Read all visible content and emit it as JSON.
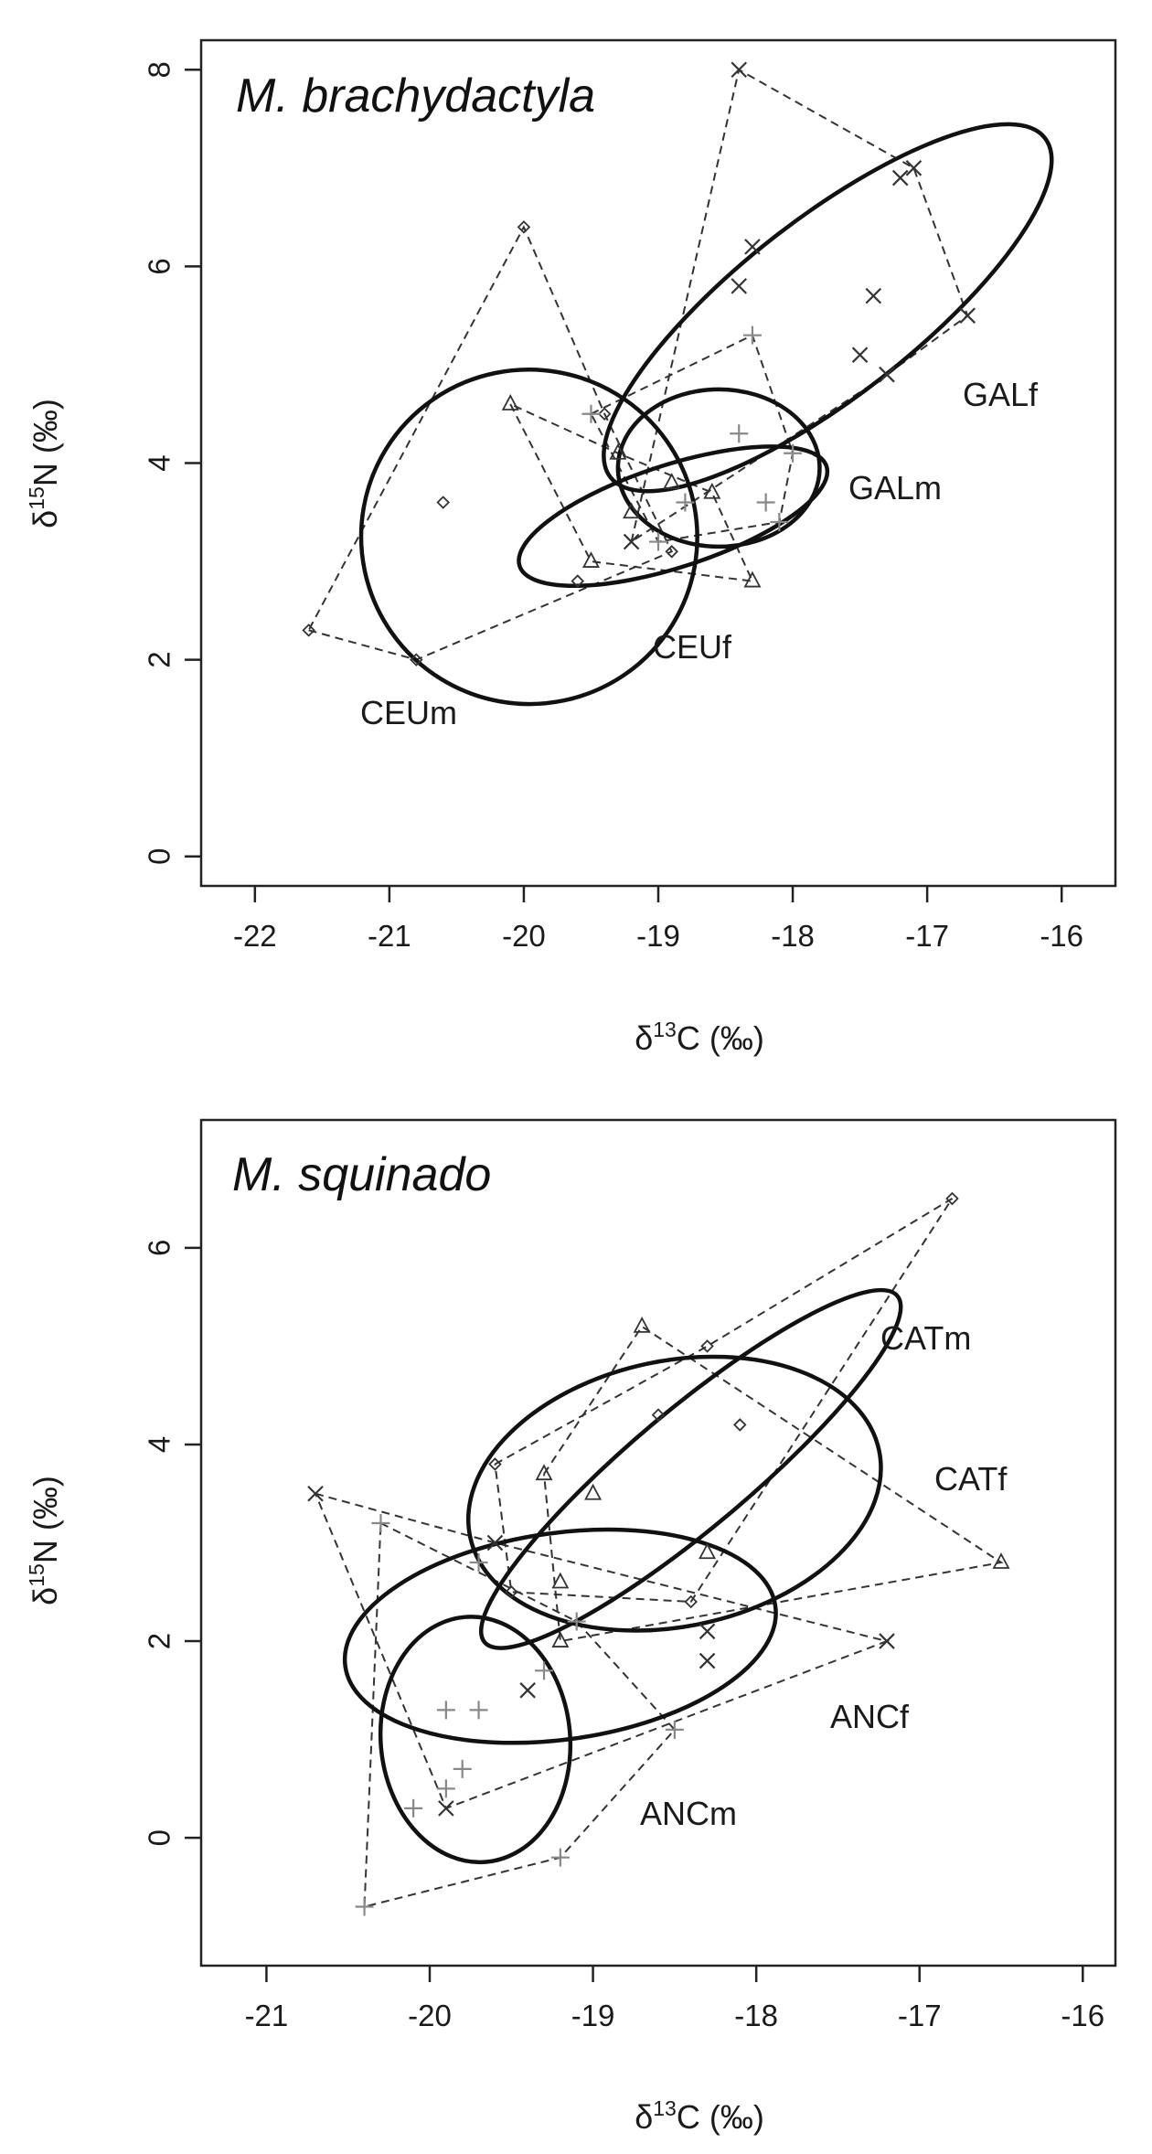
{
  "chart_data": [
    {
      "type": "scatter",
      "title": "M. brachydactyla",
      "xlabel": {
        "prefix": "δ",
        "sup": "13",
        "rest": "C (‰)"
      },
      "ylabel": {
        "prefix": "δ",
        "sup": "15",
        "rest": "N (‰)"
      },
      "xlim": [
        -22.4,
        -15.6
      ],
      "ylim": [
        -0.3,
        8.3
      ],
      "xticks": [
        -22,
        -21,
        -20,
        -19,
        -18,
        -17,
        -16
      ],
      "yticks": [
        0,
        2,
        4,
        6,
        8
      ],
      "grid": false,
      "groups": [
        {
          "label": "CEUm",
          "marker": "diamond",
          "points": [
            [
              -21.6,
              2.3
            ],
            [
              -20.6,
              3.6
            ],
            [
              -20.0,
              6.4
            ],
            [
              -19.6,
              2.8
            ],
            [
              -18.9,
              3.1
            ],
            [
              -20.8,
              2.0
            ],
            [
              -19.4,
              4.5
            ]
          ],
          "hull": [
            [
              -21.6,
              2.3
            ],
            [
              -20.8,
              2.0
            ],
            [
              -18.9,
              3.1
            ],
            [
              -19.4,
              4.5
            ],
            [
              -20.0,
              6.4
            ],
            [
              -21.6,
              2.3
            ]
          ],
          "ellipse": {
            "cx": -19.96,
            "cy": 3.25,
            "rx": 1.25,
            "ry": 1.7,
            "angle": 10
          }
        },
        {
          "label": "CEUf",
          "marker": "triangle",
          "points": [
            [
              -20.1,
              4.6
            ],
            [
              -19.5,
              3.0
            ],
            [
              -19.3,
              4.1
            ],
            [
              -18.9,
              3.8
            ],
            [
              -18.6,
              3.7
            ],
            [
              -18.3,
              2.8
            ],
            [
              -19.2,
              3.5
            ]
          ],
          "hull": [
            [
              -20.1,
              4.6
            ],
            [
              -19.5,
              3.0
            ],
            [
              -18.3,
              2.8
            ],
            [
              -18.6,
              3.7
            ],
            [
              -19.3,
              4.1
            ],
            [
              -20.1,
              4.6
            ]
          ],
          "ellipse": {
            "cx": -18.89,
            "cy": 3.46,
            "rx": 1.2,
            "ry": 0.52,
            "angle": -18
          }
        },
        {
          "label": "GALm",
          "marker": "plus",
          "points": [
            [
              -19.5,
              4.5
            ],
            [
              -18.8,
              3.6
            ],
            [
              -18.4,
              4.3
            ],
            [
              -18.3,
              5.3
            ],
            [
              -18.2,
              3.6
            ],
            [
              -18.1,
              3.4
            ],
            [
              -18.0,
              4.1
            ],
            [
              -19.0,
              3.2
            ]
          ],
          "hull": [
            [
              -19.5,
              4.5
            ],
            [
              -18.3,
              5.3
            ],
            [
              -18.0,
              4.1
            ],
            [
              -18.1,
              3.4
            ],
            [
              -19.0,
              3.2
            ],
            [
              -19.5,
              4.5
            ]
          ],
          "ellipse": {
            "cx": -18.55,
            "cy": 3.95,
            "rx": 0.75,
            "ry": 0.8,
            "angle": 0
          }
        },
        {
          "label": "GALf",
          "marker": "x",
          "points": [
            [
              -18.4,
              8.0
            ],
            [
              -18.3,
              6.2
            ],
            [
              -18.4,
              5.8
            ],
            [
              -17.4,
              5.7
            ],
            [
              -17.5,
              5.1
            ],
            [
              -17.3,
              4.9
            ],
            [
              -17.2,
              6.9
            ],
            [
              -17.1,
              7.0
            ],
            [
              -16.7,
              5.5
            ],
            [
              -19.2,
              3.2
            ]
          ],
          "hull": [
            [
              -19.2,
              3.2
            ],
            [
              -18.4,
              8.0
            ],
            [
              -17.1,
              7.0
            ],
            [
              -16.7,
              5.5
            ],
            [
              -17.3,
              4.9
            ],
            [
              -19.2,
              3.2
            ]
          ],
          "ellipse": {
            "cx": -17.74,
            "cy": 5.58,
            "rx": 2.05,
            "ry": 0.9,
            "angle": -38
          }
        }
      ]
    },
    {
      "type": "scatter",
      "title": "M. squinado",
      "xlabel": {
        "prefix": "δ",
        "sup": "13",
        "rest": "C (‰)"
      },
      "ylabel": {
        "prefix": "δ",
        "sup": "15",
        "rest": "N (‰)"
      },
      "xlim": [
        -21.4,
        -15.8
      ],
      "ylim": [
        -1.3,
        7.3
      ],
      "xticks": [
        -21,
        -20,
        -19,
        -18,
        -17,
        -16
      ],
      "yticks": [
        0,
        2,
        4,
        6
      ],
      "grid": false,
      "groups": [
        {
          "label": "CATm",
          "marker": "diamond",
          "points": [
            [
              -16.8,
              6.5
            ],
            [
              -18.3,
              5.0
            ],
            [
              -18.6,
              4.3
            ],
            [
              -18.1,
              4.2
            ],
            [
              -19.6,
              3.8
            ],
            [
              -18.4,
              2.4
            ],
            [
              -19.5,
              2.5
            ]
          ],
          "hull": [
            [
              -19.6,
              3.8
            ],
            [
              -18.3,
              5.0
            ],
            [
              -16.8,
              6.5
            ],
            [
              -18.4,
              2.4
            ],
            [
              -19.5,
              2.5
            ],
            [
              -19.6,
              3.8
            ]
          ],
          "ellipse": {
            "cx": -18.4,
            "cy": 3.75,
            "rx": 1.65,
            "ry": 0.6,
            "angle": -40
          }
        },
        {
          "label": "CATf",
          "marker": "triangle",
          "points": [
            [
              -18.7,
              5.2
            ],
            [
              -19.3,
              3.7
            ],
            [
              -19.0,
              3.5
            ],
            [
              -16.5,
              2.8
            ],
            [
              -18.3,
              2.9
            ],
            [
              -19.2,
              2.6
            ],
            [
              -19.2,
              2.0
            ]
          ],
          "hull": [
            [
              -19.3,
              3.7
            ],
            [
              -18.7,
              5.2
            ],
            [
              -16.5,
              2.8
            ],
            [
              -19.2,
              2.0
            ],
            [
              -19.3,
              3.7
            ]
          ],
          "ellipse": {
            "cx": -18.5,
            "cy": 3.5,
            "rx": 1.28,
            "ry": 1.35,
            "angle": -12
          }
        },
        {
          "label": "ANCf",
          "marker": "x",
          "points": [
            [
              -20.7,
              3.5
            ],
            [
              -19.6,
              3.0
            ],
            [
              -19.4,
              1.5
            ],
            [
              -19.9,
              0.3
            ],
            [
              -18.3,
              2.1
            ],
            [
              -18.3,
              1.8
            ],
            [
              -17.2,
              2.0
            ]
          ],
          "hull": [
            [
              -20.7,
              3.5
            ],
            [
              -19.6,
              3.0
            ],
            [
              -17.2,
              2.0
            ],
            [
              -19.9,
              0.3
            ],
            [
              -20.7,
              3.5
            ]
          ],
          "ellipse": {
            "cx": -19.2,
            "cy": 2.05,
            "rx": 1.33,
            "ry": 1.05,
            "angle": -8
          }
        },
        {
          "label": "ANCm",
          "marker": "plus",
          "points": [
            [
              -20.3,
              3.2
            ],
            [
              -19.7,
              2.8
            ],
            [
              -19.3,
              1.7
            ],
            [
              -19.9,
              1.3
            ],
            [
              -19.7,
              1.3
            ],
            [
              -19.8,
              0.7
            ],
            [
              -19.9,
              0.5
            ],
            [
              -20.1,
              0.3
            ],
            [
              -20.4,
              -0.7
            ],
            [
              -19.2,
              -0.2
            ],
            [
              -19.1,
              2.2
            ],
            [
              -18.5,
              1.1
            ]
          ],
          "hull": [
            [
              -20.3,
              3.2
            ],
            [
              -19.1,
              2.2
            ],
            [
              -18.5,
              1.1
            ],
            [
              -19.2,
              -0.2
            ],
            [
              -20.4,
              -0.7
            ],
            [
              -20.3,
              3.2
            ]
          ],
          "ellipse": {
            "cx": -19.72,
            "cy": 1.0,
            "rx": 0.58,
            "ry": 1.25,
            "angle": -5
          }
        }
      ]
    }
  ]
}
